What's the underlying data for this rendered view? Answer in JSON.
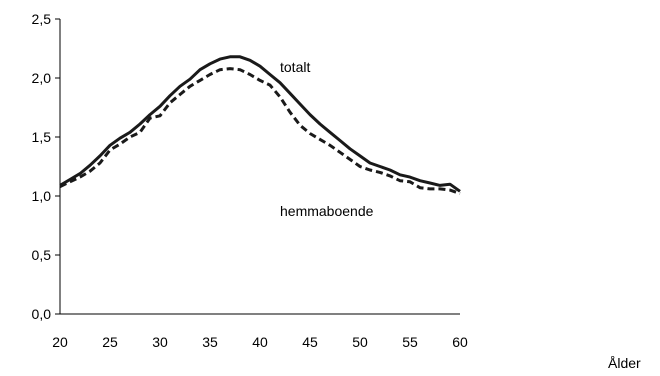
{
  "chart_data": {
    "type": "line",
    "title": "",
    "xlabel": "Ålder",
    "ylabel": "",
    "xlim": [
      20,
      60
    ],
    "ylim": [
      0,
      2.5
    ],
    "x_ticks": [
      "20",
      "25",
      "30",
      "35",
      "40",
      "45",
      "50",
      "55",
      "60"
    ],
    "y_ticks": [
      "0,0",
      "0,5",
      "1,0",
      "1,5",
      "2,0",
      "2,5"
    ],
    "grid": false,
    "legend": "none",
    "annotations": [
      {
        "text": "totalt",
        "series": 0
      },
      {
        "text": "hemmaboende",
        "series": 1
      }
    ],
    "x": [
      20,
      21,
      22,
      23,
      24,
      25,
      26,
      27,
      28,
      29,
      30,
      31,
      32,
      33,
      34,
      35,
      36,
      37,
      38,
      39,
      40,
      41,
      42,
      43,
      44,
      45,
      46,
      47,
      48,
      49,
      50,
      51,
      52,
      53,
      54,
      55,
      56,
      57,
      58,
      59,
      60
    ],
    "series": [
      {
        "values": [
          1.09,
          1.14,
          1.19,
          1.26,
          1.34,
          1.43,
          1.49,
          1.54,
          1.61,
          1.69,
          1.76,
          1.85,
          1.93,
          1.99,
          2.07,
          2.12,
          2.16,
          2.18,
          2.18,
          2.15,
          2.1,
          2.03,
          1.96,
          1.87,
          1.78,
          1.69,
          1.61,
          1.54,
          1.47,
          1.4,
          1.34,
          1.28,
          1.25,
          1.22,
          1.18,
          1.16,
          1.13,
          1.11,
          1.09,
          1.1,
          1.04
        ],
        "color": "#1a1a1a",
        "dash": "solid"
      },
      {
        "values": [
          1.08,
          1.12,
          1.16,
          1.21,
          1.28,
          1.39,
          1.44,
          1.5,
          1.54,
          1.66,
          1.68,
          1.79,
          1.86,
          1.93,
          1.98,
          2.03,
          2.07,
          2.08,
          2.07,
          2.03,
          1.98,
          1.94,
          1.84,
          1.71,
          1.6,
          1.53,
          1.48,
          1.43,
          1.37,
          1.31,
          1.25,
          1.22,
          1.2,
          1.17,
          1.13,
          1.12,
          1.07,
          1.06,
          1.06,
          1.05,
          1.02
        ],
        "color": "#1a1a1a",
        "dash": "dashed"
      }
    ]
  }
}
